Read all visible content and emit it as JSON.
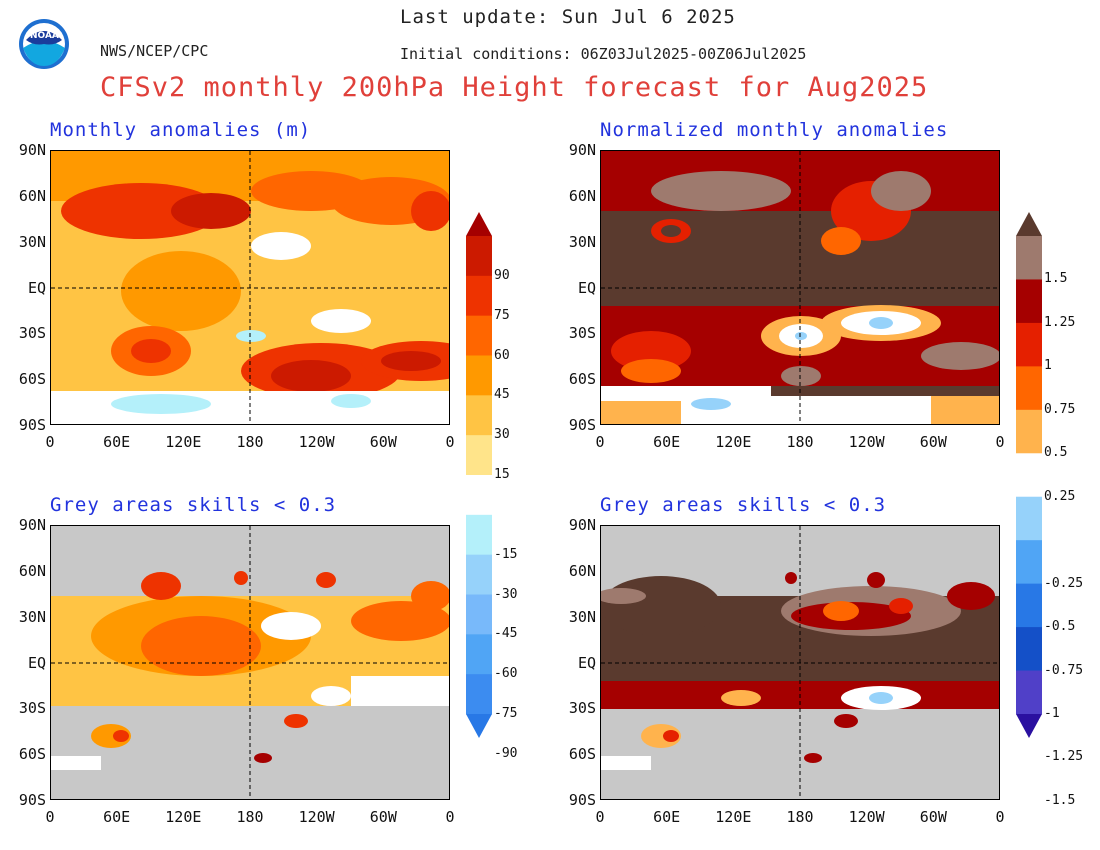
{
  "header": {
    "last_update": "Last update: Sun Jul 6 2025",
    "initial_conditions": "Initial conditions: 06Z03Jul2025-00Z06Jul2025",
    "agency": "NWS/NCEP/CPC",
    "title": "CFSv2 monthly 200hPa Height forecast for Aug2025",
    "logo_text": "NOAA"
  },
  "panels": [
    {
      "title": "Monthly anomalies (m)"
    },
    {
      "title": "Normalized monthly anomalies"
    },
    {
      "title": "Grey areas skills < 0.3"
    },
    {
      "title": "Grey areas skills < 0.3"
    }
  ],
  "axes": {
    "lat_labels": [
      "90N",
      "60N",
      "30N",
      "EQ",
      "30S",
      "60S",
      "90S"
    ],
    "lon_labels": [
      "0",
      "60E",
      "120E",
      "180",
      "120W",
      "60W",
      "0"
    ]
  },
  "colorbar_left": {
    "labels": [
      "90",
      "75",
      "60",
      "45",
      "30",
      "15",
      "-15",
      "-30",
      "-45",
      "-60",
      "-75",
      "-90"
    ]
  },
  "colorbar_right": {
    "labels": [
      "1.5",
      "1.25",
      "1",
      "0.75",
      "0.5",
      "0.25",
      "-0.25",
      "-0.5",
      "-0.75",
      "-1",
      "-1.25",
      "-1.5"
    ]
  },
  "colors": {
    "title_red": "#e0403a",
    "panel_title_blue": "#2233dd",
    "skill_grey": "#c8c8c8",
    "anom_scale": [
      "#a50000",
      "#cc1a00",
      "#ee3300",
      "#ff6600",
      "#ff9900",
      "#ffc444",
      "#ffe48a",
      "#ffffff",
      "#b4f0fa",
      "#96d2fa",
      "#78b9fa",
      "#50a5f5",
      "#3c8cf0",
      "#2878e6"
    ],
    "norm_scale": [
      "#5a3a2e",
      "#9e7a6e",
      "#a50000",
      "#e52000",
      "#ff6600",
      "#ffb34d",
      "#ffffff",
      "#96d2fa",
      "#50a5f5",
      "#2878e6",
      "#1450c8",
      "#5040c8",
      "#2a10a0"
    ]
  }
}
